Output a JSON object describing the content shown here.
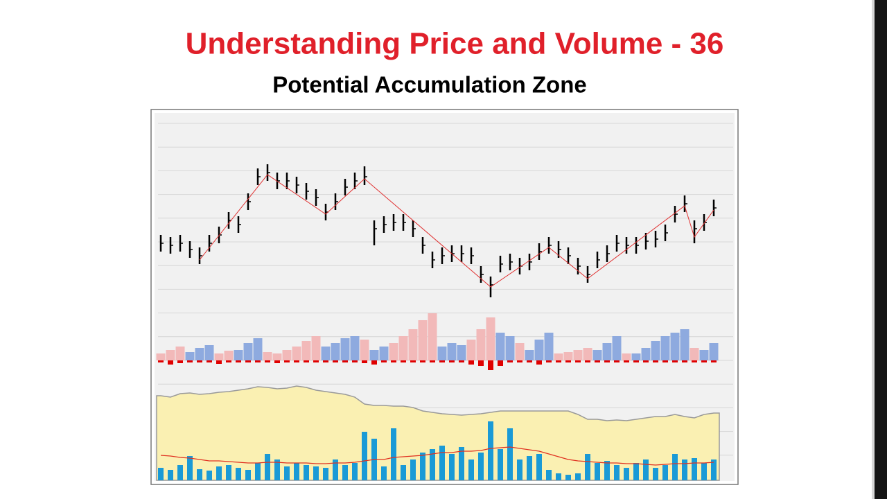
{
  "title": "Understanding Price and Volume - 36",
  "subtitle": "Potential Accumulation Zone",
  "chart_data": [
    {
      "type": "ohlc",
      "color": "#000000",
      "ylim": [
        0,
        95
      ],
      "high": [
        37,
        36,
        37,
        34,
        31,
        37,
        41,
        48,
        46,
        57,
        69,
        71,
        67,
        67,
        65,
        62,
        59,
        52,
        57,
        64,
        67,
        70,
        44,
        46,
        47,
        47,
        44,
        36,
        29,
        31,
        32,
        32,
        31,
        22,
        17,
        27,
        28,
        26,
        28,
        33,
        36,
        34,
        31,
        26,
        22,
        29,
        32,
        37,
        36,
        36,
        38,
        39,
        42,
        51,
        56,
        44,
        47,
        54
      ],
      "low": [
        29,
        28,
        29,
        26,
        23,
        29,
        33,
        40,
        38,
        49,
        61,
        63,
        59,
        59,
        57,
        54,
        51,
        44,
        49,
        56,
        59,
        61,
        32,
        38,
        39,
        39,
        36,
        28,
        21,
        23,
        24,
        24,
        23,
        14,
        7,
        19,
        20,
        18,
        20,
        25,
        28,
        26,
        23,
        18,
        14,
        21,
        24,
        29,
        28,
        28,
        30,
        31,
        34,
        43,
        48,
        33,
        39,
        46
      ],
      "close": [
        33,
        32,
        33,
        30,
        27,
        33,
        37,
        44,
        42,
        53,
        65,
        67,
        63,
        63,
        61,
        58,
        55,
        48,
        53,
        60,
        63,
        65,
        40,
        42,
        43,
        43,
        40,
        32,
        25,
        27,
        28,
        28,
        27,
        18,
        13,
        23,
        24,
        22,
        24,
        29,
        32,
        30,
        27,
        22,
        18,
        25,
        28,
        33,
        32,
        32,
        34,
        35,
        38,
        47,
        52,
        40,
        43,
        50
      ],
      "trend": {
        "color": "#e03030",
        "x": [
          4,
          11,
          17,
          21,
          34,
          40,
          44,
          54,
          55,
          57
        ],
        "values": [
          25,
          66,
          47,
          64,
          12,
          31,
          16,
          51,
          36,
          49
        ]
      }
    },
    {
      "type": "wave",
      "ylim": [
        -20,
        70
      ],
      "series": [
        {
          "color": "#8eaadf",
          "values": [
            null,
            null,
            null,
            12,
            18,
            22,
            null,
            null,
            15,
            25,
            32,
            null,
            null,
            null,
            null,
            null,
            null,
            20,
            25,
            32,
            35,
            null,
            15,
            20,
            null,
            null,
            null,
            null,
            null,
            20,
            25,
            22,
            null,
            null,
            null,
            40,
            35,
            null,
            15,
            30,
            40,
            null,
            null,
            null,
            null,
            15,
            25,
            35,
            null,
            10,
            18,
            28,
            35,
            40,
            45,
            null,
            15,
            25
          ]
        },
        {
          "color": "#f2b9b9",
          "values": [
            10,
            15,
            20,
            null,
            null,
            null,
            10,
            14,
            null,
            null,
            null,
            12,
            10,
            15,
            20,
            28,
            35,
            null,
            null,
            null,
            null,
            30,
            null,
            null,
            25,
            35,
            45,
            58,
            68,
            null,
            null,
            null,
            30,
            45,
            62,
            null,
            null,
            25,
            null,
            null,
            null,
            10,
            12,
            15,
            18,
            null,
            null,
            null,
            10,
            null,
            null,
            null,
            null,
            null,
            null,
            18,
            null,
            null
          ]
        },
        {
          "color": "#e00000",
          "values": [
            -3,
            -6,
            -4,
            -3,
            -3,
            -3,
            -5,
            -3,
            -3,
            -3,
            -3,
            -3,
            -4,
            -3,
            -3,
            -3,
            -3,
            -3,
            -3,
            -3,
            -3,
            -4,
            -6,
            -3,
            -3,
            -3,
            -3,
            -3,
            -3,
            -3,
            -3,
            -3,
            -6,
            -8,
            -14,
            -8,
            -3,
            -3,
            -3,
            -6,
            -3,
            -3,
            -3,
            -3,
            -3,
            -3,
            -3,
            -3,
            -3,
            -3,
            -3,
            -3,
            -3,
            -3,
            -3,
            -3,
            -3,
            -3
          ]
        }
      ]
    },
    {
      "type": "volume",
      "ylim": [
        0,
        140
      ],
      "color": "#1a9ad6",
      "values": [
        18,
        15,
        22,
        35,
        16,
        14,
        20,
        22,
        18,
        15,
        25,
        38,
        30,
        20,
        25,
        22,
        20,
        18,
        30,
        22,
        25,
        70,
        60,
        20,
        75,
        22,
        30,
        40,
        45,
        50,
        38,
        48,
        30,
        40,
        85,
        45,
        75,
        30,
        35,
        38,
        15,
        10,
        8,
        10,
        38,
        25,
        28,
        22,
        18,
        25,
        30,
        18,
        22,
        38,
        30,
        32,
        25,
        30
      ],
      "average": {
        "color": "#e03020",
        "values": [
          36,
          35,
          33,
          32,
          30,
          28,
          28,
          27,
          26,
          25,
          25,
          26,
          26,
          25,
          25,
          25,
          24,
          24,
          25,
          25,
          26,
          28,
          30,
          30,
          33,
          34,
          35,
          36,
          38,
          40,
          40,
          42,
          42,
          43,
          46,
          47,
          48,
          46,
          44,
          42,
          38,
          34,
          30,
          28,
          27,
          26,
          25,
          25,
          24,
          24,
          23,
          22,
          23,
          24,
          24,
          25,
          25,
          26
        ]
      },
      "area": {
        "color": "#faf0b2",
        "line_color": "#999999",
        "values": [
          122,
          120,
          125,
          126,
          124,
          125,
          127,
          128,
          130,
          132,
          135,
          134,
          132,
          133,
          136,
          134,
          130,
          128,
          126,
          124,
          120,
          110,
          108,
          108,
          107,
          107,
          105,
          100,
          98,
          96,
          95,
          94,
          95,
          96,
          98,
          100,
          100,
          100,
          100,
          100,
          100,
          100,
          100,
          95,
          88,
          88,
          86,
          87,
          86,
          88,
          90,
          92,
          92,
          95,
          92,
          90,
          95,
          97
        ]
      }
    }
  ]
}
